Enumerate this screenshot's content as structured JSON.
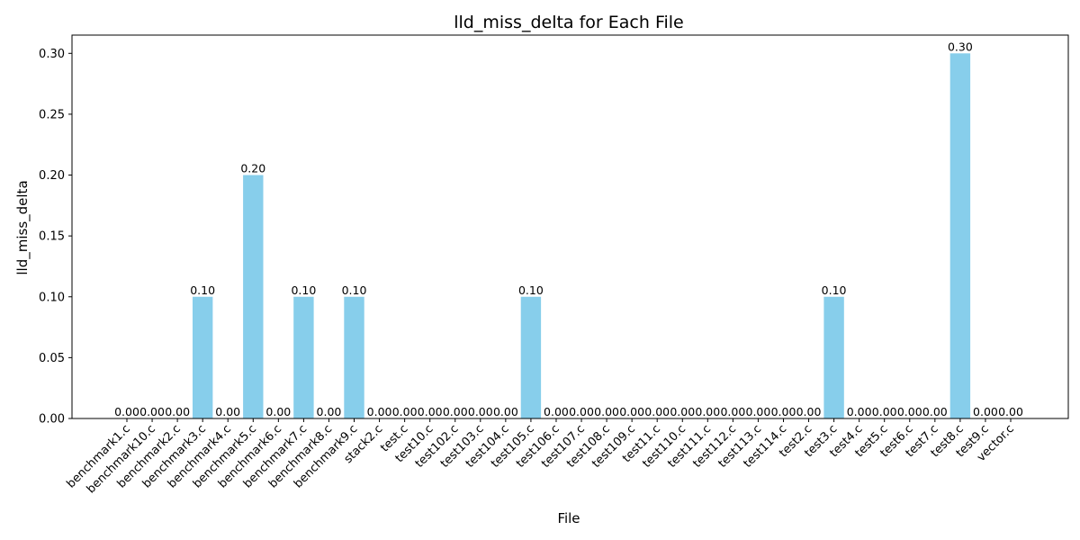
{
  "chart_data": {
    "type": "bar",
    "title": "lld_miss_delta for Each File",
    "xlabel": "File",
    "ylabel": "lld_miss_delta",
    "ylim": [
      0,
      0.315
    ],
    "yticks": [
      "0.00",
      "0.05",
      "0.10",
      "0.15",
      "0.20",
      "0.25",
      "0.30"
    ],
    "bar_color": "#87CEEB",
    "grid": false,
    "legend": "none",
    "categories": [
      "benchmark1.c",
      "benchmark10.c",
      "benchmark2.c",
      "benchmark3.c",
      "benchmark4.c",
      "benchmark5.c",
      "benchmark6.c",
      "benchmark7.c",
      "benchmark8.c",
      "benchmark9.c",
      "stack2.c",
      "test.c",
      "test10.c",
      "test102.c",
      "test103.c",
      "test104.c",
      "test105.c",
      "test106.c",
      "test107.c",
      "test108.c",
      "test109.c",
      "test11.c",
      "test110.c",
      "test111.c",
      "test112.c",
      "test113.c",
      "test114.c",
      "test2.c",
      "test3.c",
      "test4.c",
      "test5.c",
      "test6.c",
      "test7.c",
      "test8.c",
      "test9.c",
      "vector.c"
    ],
    "values": [
      0,
      0,
      0,
      0.1,
      0,
      0.2,
      0,
      0.1,
      0,
      0.1,
      0,
      0,
      0,
      0,
      0,
      0,
      0.1,
      0,
      0,
      0,
      0,
      0,
      0,
      0,
      0,
      0,
      0,
      0,
      0.1,
      0,
      0,
      0,
      0,
      0.3,
      0,
      0
    ],
    "data_labels": [
      "0.00",
      "0.00",
      "0.00",
      "0.10",
      "0.00",
      "0.20",
      "0.00",
      "0.10",
      "0.00",
      "0.10",
      "0.00",
      "0.00",
      "0.00",
      "0.00",
      "0.00",
      "0.00",
      "0.10",
      "0.00",
      "0.00",
      "0.00",
      "0.00",
      "0.00",
      "0.00",
      "0.00",
      "0.00",
      "0.00",
      "0.00",
      "0.00",
      "0.10",
      "0.00",
      "0.00",
      "0.00",
      "0.00",
      "0.30",
      "0.00",
      "0.00"
    ]
  }
}
